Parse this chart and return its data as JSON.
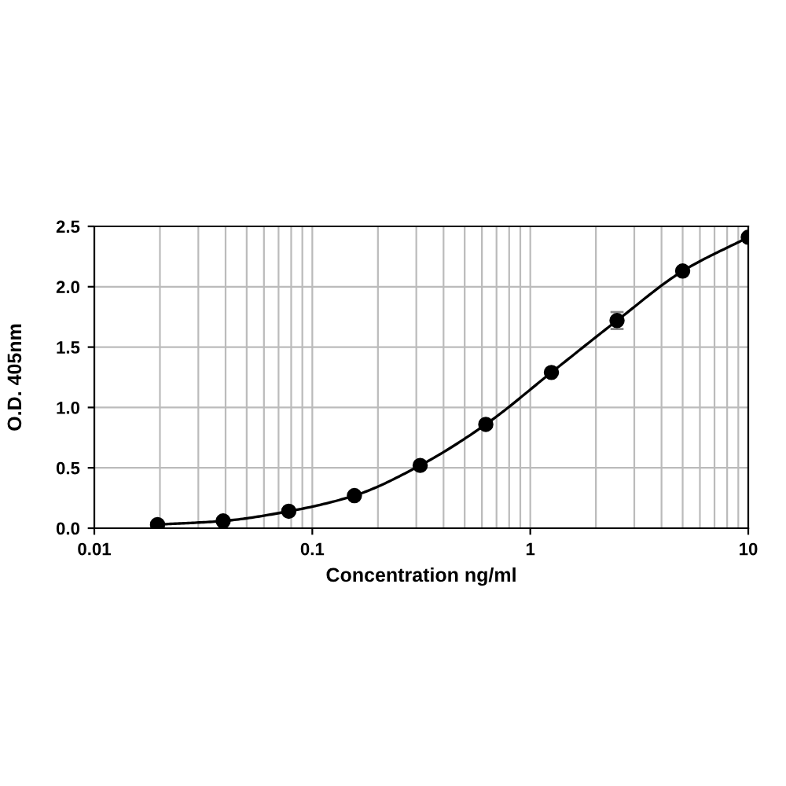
{
  "chart_data": {
    "type": "line",
    "xlabel": "Concentration ng/ml",
    "ylabel": "O.D. 405nm",
    "log": "x",
    "x": [
      0.0195,
      0.039,
      0.078,
      0.156,
      0.3125,
      0.625,
      1.25,
      2.5,
      5,
      10
    ],
    "series": [
      {
        "color": "#000000",
        "values": [
          0.03,
          0.06,
          0.14,
          0.27,
          0.52,
          0.86,
          1.29,
          1.72,
          2.13,
          2.41
        ],
        "errors": [
          null,
          null,
          null,
          null,
          null,
          null,
          null,
          0.07,
          null,
          null
        ]
      }
    ],
    "xlim": [
      0.01,
      10
    ],
    "xticks": [
      0.01,
      0.1,
      1,
      10
    ],
    "ylim": [
      0,
      2.5
    ],
    "yticks": [
      {
        "value": 0,
        "label": "0.0"
      },
      {
        "value": 0.5,
        "label": "0.5"
      },
      {
        "value": 1,
        "label": "1.0"
      },
      {
        "value": 1.5,
        "label": "1.5"
      },
      {
        "value": 2,
        "label": "2.0"
      },
      {
        "value": 2.5,
        "label": "2.5"
      }
    ],
    "grid": true,
    "marker": "circle",
    "line_style": "solid"
  }
}
